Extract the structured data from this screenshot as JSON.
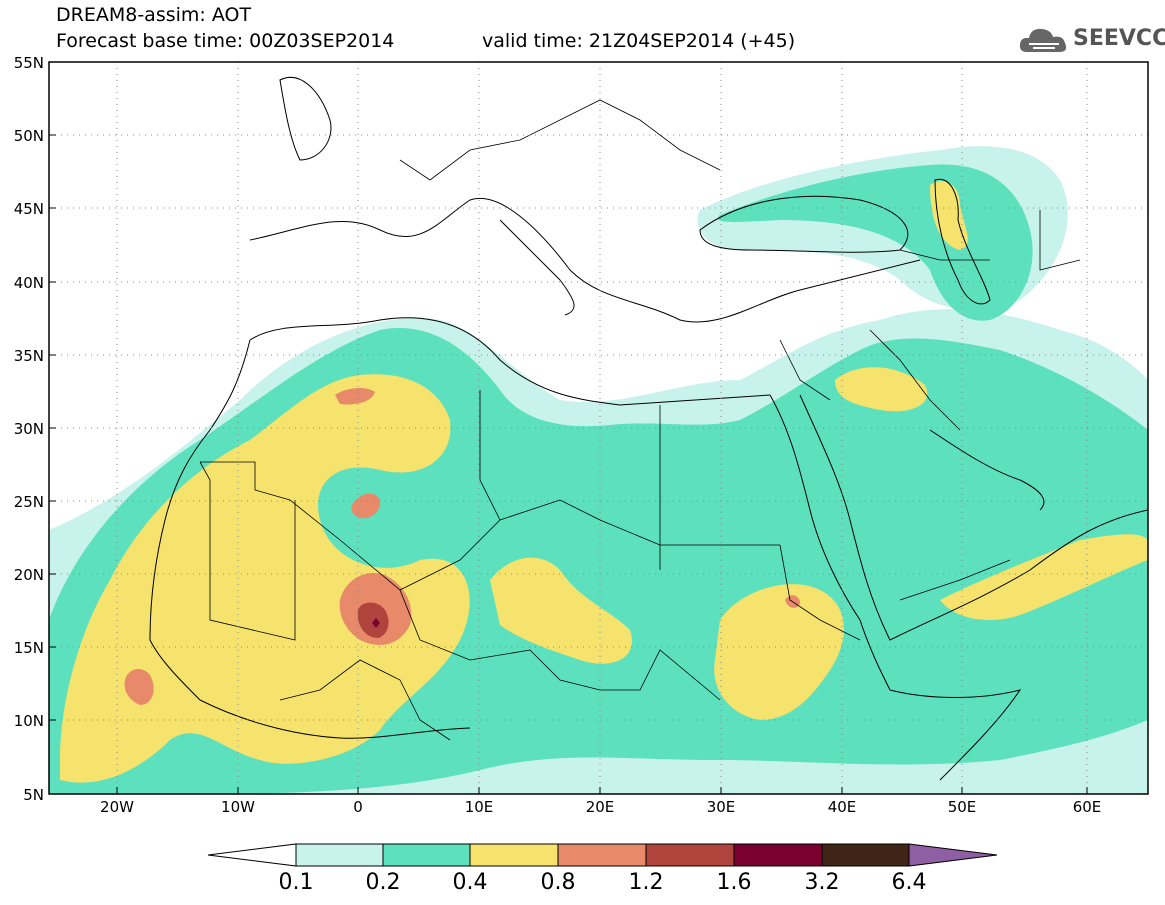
{
  "header": {
    "title_line1": "DREAM8-assim: AOT",
    "title_line2": "Forecast base time: 00Z03SEP2014",
    "valid_time": "valid time: 21Z04SEP2014 (+45)",
    "logo_text": "SEEVCCC"
  },
  "map": {
    "lon_labels": [
      "20W",
      "10W",
      "0",
      "10E",
      "20E",
      "30E",
      "40E",
      "50E",
      "60E"
    ],
    "lat_labels": [
      "55N",
      "50N",
      "45N",
      "40N",
      "35N",
      "30N",
      "25N",
      "20N",
      "15N",
      "10N",
      "5N"
    ],
    "lon_range": [
      -25,
      65
    ],
    "lat_range": [
      5,
      55
    ],
    "grid": true
  },
  "colorbar": {
    "labels": [
      "0.1",
      "0.2",
      "0.4",
      "0.8",
      "1.2",
      "1.6",
      "3.2",
      "6.4"
    ],
    "colors": [
      "#ffffff",
      "#c8f2ec",
      "#5ce0bd",
      "#f5e36e",
      "#e8896a",
      "#b0443c",
      "#7a0030",
      "#3e2515",
      "#8f5fa3"
    ]
  },
  "colors": {
    "level_0_1": "#c8f2ec",
    "level_0_2": "#5ce0bd",
    "level_0_4": "#f5e36e",
    "level_0_8": "#e8896a",
    "level_1_2": "#b0443c",
    "level_1_6": "#7a0030"
  }
}
